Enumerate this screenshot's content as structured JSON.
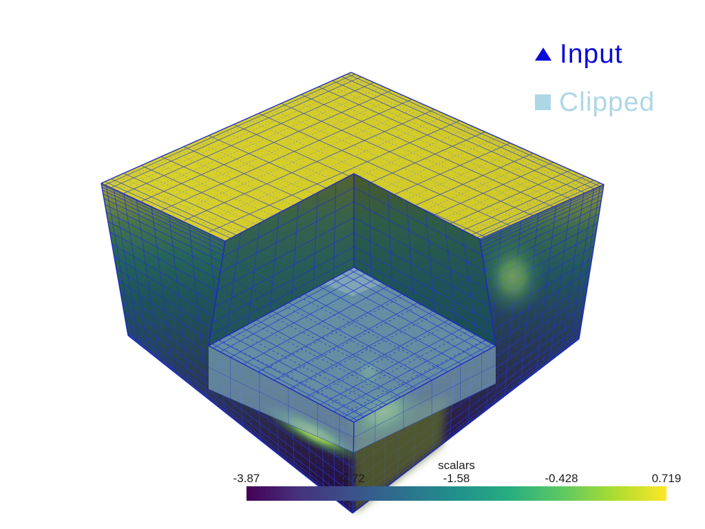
{
  "window": {
    "background": "#ffffff"
  },
  "legend": {
    "items": [
      {
        "label": "Input",
        "marker": "triangle",
        "color": "#0a0ad9"
      },
      {
        "label": "Clipped",
        "marker": "square",
        "color": "#aed7e6"
      }
    ]
  },
  "colorbar": {
    "title": "scalars",
    "ticks": [
      "-3.87",
      "-2.72",
      "-1.58",
      "-0.428",
      "0.719"
    ],
    "colormap": "viridis",
    "gradient": [
      "#440154",
      "#46327e",
      "#3b518b",
      "#2c718e",
      "#21918c",
      "#27ad81",
      "#5cc863",
      "#aadc32",
      "#fde725"
    ],
    "text_color": "#1b1b1b"
  },
  "scene": {
    "colors": {
      "wireframe": "#2334c5",
      "edge": "#1a27c4",
      "top_face": "#d5ce29",
      "clipped_box": "#6e99ac",
      "skirt": "#7ea7b9"
    }
  },
  "chart_data": {
    "type": "3d_mesh",
    "title": "",
    "legend": [
      {
        "name": "Input",
        "marker": "triangle",
        "color": "#0a0ad9"
      },
      {
        "name": "Clipped",
        "marker": "square",
        "color": "#aed7e6"
      }
    ],
    "scalar_bar": {
      "title": "scalars",
      "tick_labels": [
        -3.87,
        -2.72,
        -1.58,
        -0.428,
        0.719
      ],
      "range": [
        -3.87,
        0.719
      ],
      "colormap": "viridis",
      "orientation": "horizontal",
      "position": "bottom"
    },
    "scene_description": "Rectilinear grid cube colored by 'scalars' (viridis, yellow top fading to purple bottom) with a box region clipped from the front-top corner; semi-transparent light-blue clipped box inside the notch; blue input wireframe overlaid, dashed where it spans the clipped void."
  }
}
